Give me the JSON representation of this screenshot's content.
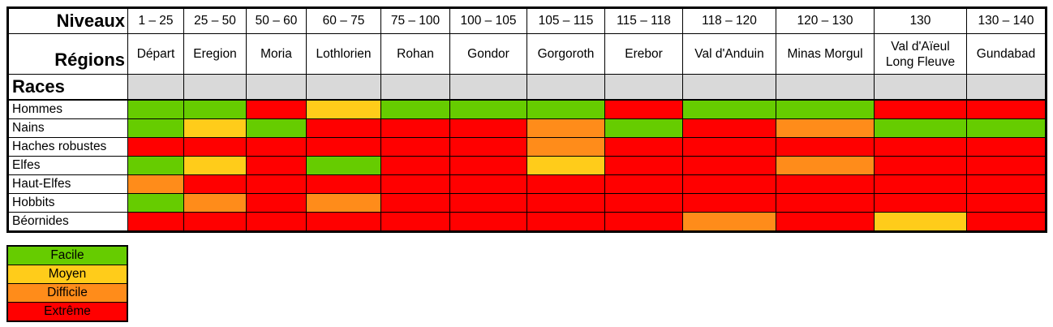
{
  "headers": {
    "levels_label": "Niveaux",
    "regions_label": "Régions",
    "races_label": "Races"
  },
  "columns": [
    {
      "level": "1 – 25",
      "region": "Départ"
    },
    {
      "level": "25 – 50",
      "region": "Eregion"
    },
    {
      "level": "50 – 60",
      "region": "Moria"
    },
    {
      "level": "60 – 75",
      "region": "Lothlorien"
    },
    {
      "level": "75 – 100",
      "region": "Rohan"
    },
    {
      "level": "100 – 105",
      "region": "Gondor"
    },
    {
      "level": "105 – 115",
      "region": "Gorgoroth"
    },
    {
      "level": "115 – 118",
      "region": "Erebor"
    },
    {
      "level": "118 – 120",
      "region": "Val d'Anduin"
    },
    {
      "level": "120 – 130",
      "region": "Minas Morgul"
    },
    {
      "level": "130",
      "region": "Val d'Aïeul\nLong Fleuve"
    },
    {
      "level": "130 – 140",
      "region": "Gundabad"
    }
  ],
  "races": [
    {
      "name": "Hommes",
      "cells": [
        "facile",
        "facile",
        "extreme",
        "moyen",
        "facile",
        "facile",
        "facile",
        "extreme",
        "facile",
        "facile",
        "extreme",
        "extreme"
      ]
    },
    {
      "name": "Nains",
      "cells": [
        "facile",
        "moyen",
        "facile",
        "extreme",
        "extreme",
        "extreme",
        "difficile",
        "facile",
        "extreme",
        "difficile",
        "facile",
        "facile"
      ]
    },
    {
      "name": "Haches robustes",
      "cells": [
        "extreme",
        "extreme",
        "extreme",
        "extreme",
        "extreme",
        "extreme",
        "difficile",
        "extreme",
        "extreme",
        "extreme",
        "extreme",
        "extreme"
      ]
    },
    {
      "name": "Elfes",
      "cells": [
        "facile",
        "moyen",
        "extreme",
        "facile",
        "extreme",
        "extreme",
        "moyen",
        "extreme",
        "extreme",
        "difficile",
        "extreme",
        "extreme"
      ]
    },
    {
      "name": "Haut-Elfes",
      "cells": [
        "difficile",
        "extreme",
        "extreme",
        "extreme",
        "extreme",
        "extreme",
        "extreme",
        "extreme",
        "extreme",
        "extreme",
        "extreme",
        "extreme"
      ]
    },
    {
      "name": "Hobbits",
      "cells": [
        "facile",
        "difficile",
        "extreme",
        "difficile",
        "extreme",
        "extreme",
        "extreme",
        "extreme",
        "extreme",
        "extreme",
        "extreme",
        "extreme"
      ]
    },
    {
      "name": "Béornides",
      "cells": [
        "extreme",
        "extreme",
        "extreme",
        "extreme",
        "extreme",
        "extreme",
        "extreme",
        "extreme",
        "difficile",
        "extreme",
        "moyen",
        "extreme"
      ]
    }
  ],
  "legend": [
    {
      "key": "facile",
      "label": "Facile",
      "color": "#66cc00"
    },
    {
      "key": "moyen",
      "label": "Moyen",
      "color": "#ffcc1a"
    },
    {
      "key": "difficile",
      "label": "Difficile",
      "color": "#ff8c1a"
    },
    {
      "key": "extreme",
      "label": "Extrême",
      "color": "#ff0000"
    }
  ]
}
